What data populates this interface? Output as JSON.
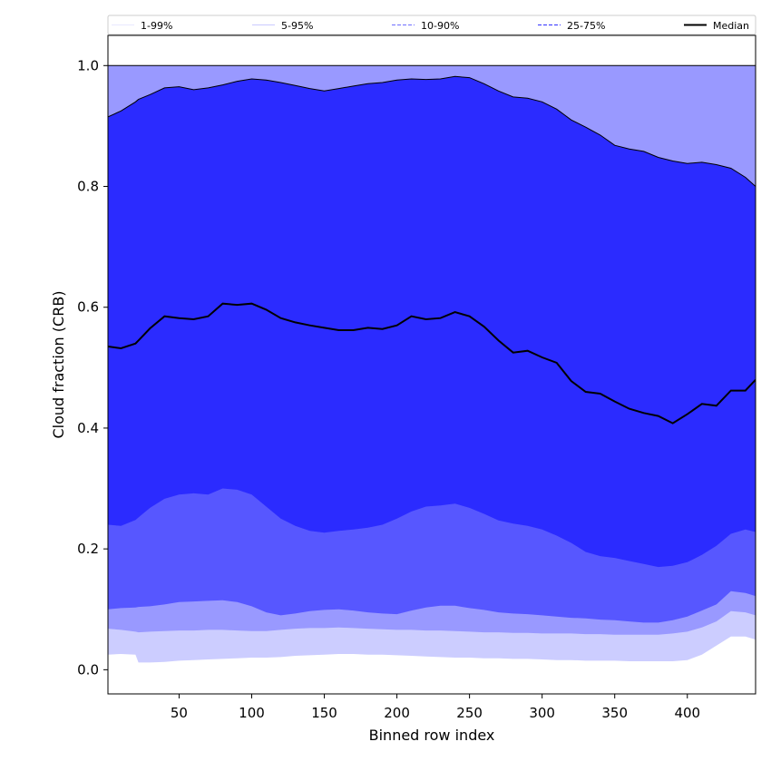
{
  "chart_data": {
    "type": "area",
    "xlabel": "Binned row index",
    "ylabel": "Cloud fraction (CRB)",
    "xlim": [
      1,
      447
    ],
    "ylim": [
      -0.04,
      1.05
    ],
    "x_ticks": [
      50,
      100,
      150,
      200,
      250,
      300,
      350,
      400
    ],
    "x_tick_labels": [
      "50",
      "100",
      "150",
      "200",
      "250",
      "300",
      "350",
      "400"
    ],
    "y_ticks": [
      0.0,
      0.2,
      0.4,
      0.6,
      0.8,
      1.0
    ],
    "y_tick_labels": [
      "0.0",
      "0.2",
      "0.4",
      "0.6",
      "0.8",
      "1.0"
    ],
    "grid": false,
    "legend_position": "top",
    "x": [
      1,
      10,
      20,
      22,
      30,
      40,
      50,
      60,
      70,
      80,
      90,
      100,
      110,
      120,
      130,
      140,
      150,
      160,
      170,
      180,
      190,
      200,
      210,
      220,
      230,
      240,
      250,
      260,
      270,
      280,
      290,
      300,
      310,
      320,
      330,
      340,
      350,
      360,
      370,
      380,
      390,
      400,
      410,
      420,
      430,
      440,
      447
    ],
    "bands": [
      {
        "name": "1-99%",
        "color": "#cccdff",
        "line_color": "#e0e0ff",
        "lower": [
          0.025,
          0.026,
          0.025,
          0.012,
          0.012,
          0.013,
          0.015,
          0.016,
          0.017,
          0.018,
          0.019,
          0.02,
          0.02,
          0.021,
          0.023,
          0.024,
          0.025,
          0.026,
          0.026,
          0.025,
          0.025,
          0.024,
          0.023,
          0.022,
          0.021,
          0.02,
          0.02,
          0.019,
          0.019,
          0.018,
          0.018,
          0.017,
          0.016,
          0.016,
          0.015,
          0.015,
          0.015,
          0.014,
          0.014,
          0.014,
          0.014,
          0.016,
          0.025,
          0.04,
          0.055,
          0.055,
          0.05
        ],
        "upper": [
          1.0,
          1.0,
          1.0,
          1.0,
          1.0,
          1.0,
          1.0,
          1.0,
          1.0,
          1.0,
          1.0,
          1.0,
          1.0,
          1.0,
          1.0,
          1.0,
          1.0,
          1.0,
          1.0,
          1.0,
          1.0,
          1.0,
          1.0,
          1.0,
          1.0,
          1.0,
          1.0,
          1.0,
          1.0,
          1.0,
          1.0,
          1.0,
          1.0,
          1.0,
          1.0,
          1.0,
          1.0,
          1.0,
          1.0,
          1.0,
          1.0,
          1.0,
          1.0,
          1.0,
          1.0,
          1.0,
          1.0
        ]
      },
      {
        "name": "5-95%",
        "color": "#9999ff",
        "line_color": "#b8b8ff",
        "lower": [
          0.068,
          0.066,
          0.063,
          0.062,
          0.063,
          0.064,
          0.065,
          0.065,
          0.066,
          0.066,
          0.065,
          0.064,
          0.064,
          0.066,
          0.068,
          0.069,
          0.069,
          0.07,
          0.069,
          0.068,
          0.067,
          0.066,
          0.066,
          0.065,
          0.065,
          0.064,
          0.063,
          0.062,
          0.062,
          0.061,
          0.061,
          0.06,
          0.06,
          0.06,
          0.059,
          0.059,
          0.058,
          0.058,
          0.058,
          0.058,
          0.06,
          0.063,
          0.07,
          0.08,
          0.097,
          0.095,
          0.09
        ],
        "upper": [
          1.0,
          1.0,
          1.0,
          1.0,
          1.0,
          1.0,
          1.0,
          1.0,
          1.0,
          1.0,
          1.0,
          1.0,
          1.0,
          1.0,
          1.0,
          1.0,
          1.0,
          1.0,
          1.0,
          1.0,
          1.0,
          1.0,
          1.0,
          1.0,
          1.0,
          1.0,
          1.0,
          1.0,
          1.0,
          1.0,
          1.0,
          1.0,
          1.0,
          1.0,
          1.0,
          1.0,
          1.0,
          1.0,
          1.0,
          1.0,
          1.0,
          1.0,
          1.0,
          1.0,
          1.0,
          1.0,
          1.0
        ]
      },
      {
        "name": "10-90%",
        "color": "#5757ff",
        "line_color": "#8080ff",
        "lower": [
          0.1,
          0.102,
          0.103,
          0.104,
          0.105,
          0.108,
          0.112,
          0.113,
          0.114,
          0.115,
          0.112,
          0.105,
          0.095,
          0.09,
          0.093,
          0.097,
          0.099,
          0.1,
          0.098,
          0.095,
          0.093,
          0.092,
          0.098,
          0.103,
          0.106,
          0.106,
          0.102,
          0.099,
          0.095,
          0.093,
          0.092,
          0.09,
          0.088,
          0.086,
          0.085,
          0.083,
          0.082,
          0.08,
          0.078,
          0.078,
          0.082,
          0.088,
          0.098,
          0.108,
          0.13,
          0.127,
          0.122
        ],
        "upper": [
          0.915,
          0.925,
          0.94,
          0.944,
          0.952,
          0.963,
          0.965,
          0.96,
          0.963,
          0.968,
          0.974,
          0.978,
          0.976,
          0.972,
          0.967,
          0.962,
          0.958,
          0.962,
          0.966,
          0.97,
          0.972,
          0.976,
          0.978,
          0.977,
          0.978,
          0.982,
          0.98,
          0.97,
          0.958,
          0.948,
          0.946,
          0.94,
          0.928,
          0.91,
          0.898,
          0.885,
          0.868,
          0.862,
          0.858,
          0.848,
          0.842,
          0.838,
          0.84,
          0.836,
          0.83,
          0.815,
          0.8
        ]
      },
      {
        "name": "25-75%",
        "color": "#2b2bff",
        "line_color": "#4a4aff",
        "lower": [
          0.24,
          0.238,
          0.248,
          0.252,
          0.268,
          0.283,
          0.29,
          0.292,
          0.29,
          0.3,
          0.298,
          0.29,
          0.27,
          0.25,
          0.238,
          0.23,
          0.227,
          0.23,
          0.232,
          0.235,
          0.24,
          0.25,
          0.262,
          0.27,
          0.272,
          0.275,
          0.268,
          0.258,
          0.247,
          0.242,
          0.238,
          0.232,
          0.222,
          0.21,
          0.195,
          0.188,
          0.185,
          0.18,
          0.175,
          0.17,
          0.172,
          0.178,
          0.19,
          0.205,
          0.225,
          0.232,
          0.228
        ],
        "upper": [
          0.915,
          0.925,
          0.94,
          0.944,
          0.952,
          0.963,
          0.965,
          0.96,
          0.963,
          0.968,
          0.974,
          0.978,
          0.976,
          0.972,
          0.967,
          0.962,
          0.958,
          0.962,
          0.966,
          0.97,
          0.972,
          0.976,
          0.978,
          0.977,
          0.978,
          0.982,
          0.98,
          0.97,
          0.958,
          0.948,
          0.946,
          0.94,
          0.928,
          0.91,
          0.898,
          0.885,
          0.868,
          0.862,
          0.858,
          0.848,
          0.842,
          0.838,
          0.84,
          0.836,
          0.83,
          0.815,
          0.8
        ]
      }
    ],
    "median": {
      "name": "Median",
      "color": "#000000",
      "values": [
        0.535,
        0.532,
        0.54,
        0.545,
        0.565,
        0.585,
        0.582,
        0.58,
        0.585,
        0.606,
        0.604,
        0.606,
        0.596,
        0.582,
        0.575,
        0.57,
        0.566,
        0.562,
        0.562,
        0.566,
        0.564,
        0.57,
        0.585,
        0.58,
        0.582,
        0.592,
        0.585,
        0.568,
        0.545,
        0.525,
        0.528,
        0.517,
        0.508,
        0.478,
        0.46,
        0.457,
        0.444,
        0.432,
        0.425,
        0.42,
        0.408,
        0.423,
        0.44,
        0.437,
        0.462,
        0.462,
        0.48
      ]
    },
    "legend": [
      {
        "label": "1-99%",
        "style": "solid-thin",
        "color": "#e0e0ff"
      },
      {
        "label": "5-95%",
        "style": "solid-thin",
        "color": "#b8b8ff"
      },
      {
        "label": "10-90%",
        "style": "dashed",
        "color": "#8080ff"
      },
      {
        "label": "25-75%",
        "style": "dashed",
        "color": "#4a4aff"
      },
      {
        "label": "Median",
        "style": "solid-thick",
        "color": "#000000"
      }
    ]
  }
}
